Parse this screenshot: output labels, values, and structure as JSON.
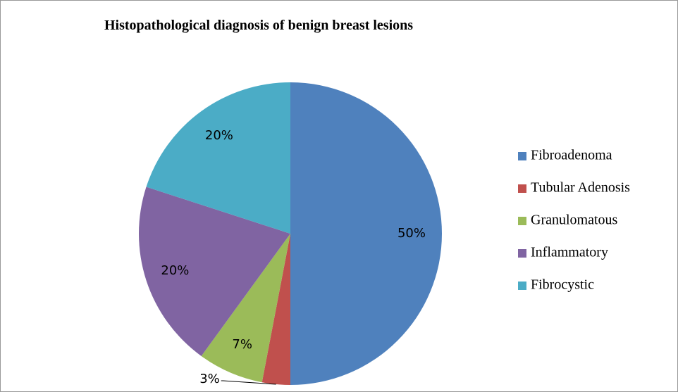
{
  "chart_data": {
    "type": "pie",
    "title": "Histopathological diagnosis of benign breast lesions",
    "categories": [
      "Fibroadenoma",
      "Tubular Adenosis",
      "Granulomatous",
      "Inflammatory",
      "Fibrocystic"
    ],
    "values": [
      50,
      3,
      7,
      20,
      20
    ],
    "value_labels": [
      "50%",
      "3%",
      "7%",
      "20%",
      "20%"
    ],
    "colors": [
      "#4f81bd",
      "#c0504d",
      "#9bbb59",
      "#8064a2",
      "#4bacc6"
    ],
    "legend": "right"
  }
}
